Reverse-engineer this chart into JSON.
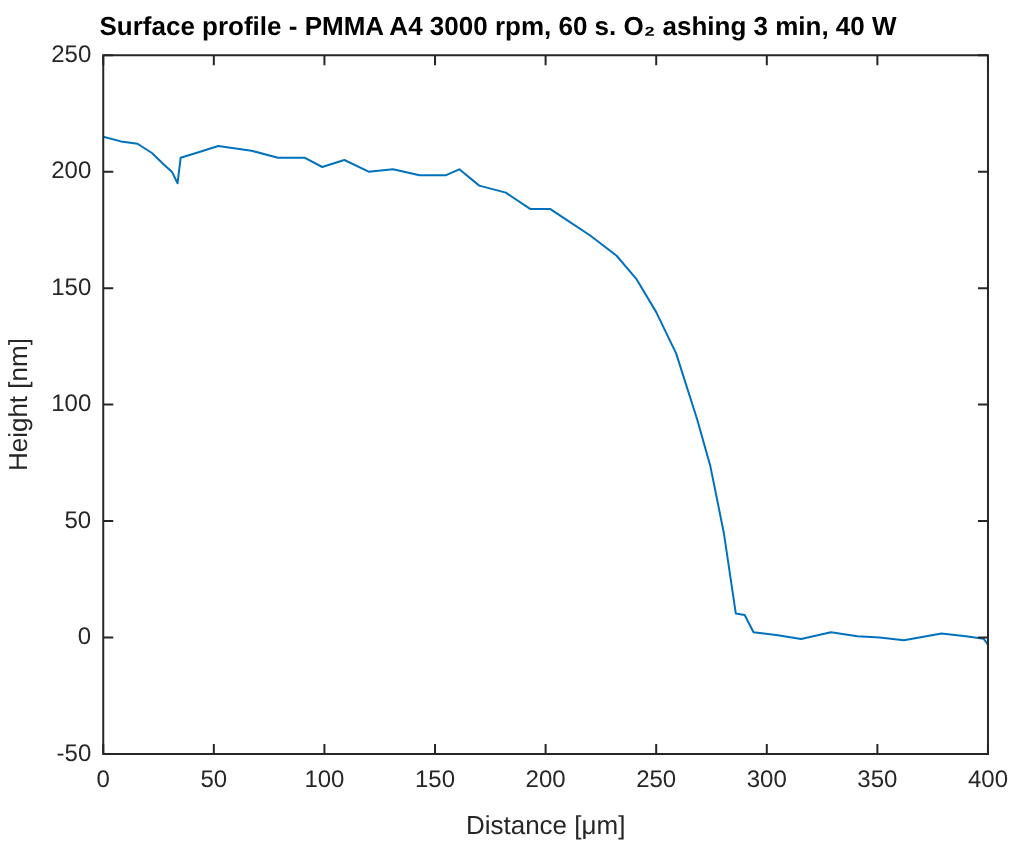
{
  "chart_data": {
    "type": "line",
    "title": "Surface profile - PMMA A4 3000 rpm, 60 s. O₂ ashing 3 min, 40 W",
    "xlabel": "Distance [μm]",
    "ylabel": "Height [nm]",
    "x": [
      0,
      8,
      15.5,
      22,
      27.5,
      31,
      33.6,
      35,
      42,
      52,
      67,
      79,
      91,
      99,
      109,
      120,
      131,
      143,
      155,
      161,
      170,
      182,
      193,
      202,
      210,
      220,
      232,
      241,
      250,
      259,
      268.5,
      274.5,
      280.6,
      286,
      290,
      294,
      305,
      315.5,
      329,
      341,
      351,
      362,
      379,
      390,
      398,
      400
    ],
    "series": [
      {
        "color": "#0072bd",
        "values": [
          215,
          213,
          212,
          208,
          203,
          200,
          195,
          206,
          208,
          211,
          209,
          206,
          206,
          202,
          205,
          200,
          201,
          198.5,
          198.5,
          201,
          194,
          191,
          184,
          184,
          179,
          172.7,
          164,
          154,
          139.7,
          122,
          93.7,
          73.5,
          44.8,
          10.3,
          9.7,
          2.3,
          1,
          -0.6,
          2.3,
          0.6,
          0,
          -1.2,
          1.7,
          0.6,
          -0.5,
          -3
        ]
      }
    ],
    "xlim": [
      0,
      400
    ],
    "xticks": [
      0,
      50,
      100,
      150,
      200,
      250,
      300,
      350,
      400
    ],
    "ylim": [
      -50,
      250
    ],
    "yticks": [
      -50,
      0,
      50,
      100,
      150,
      200,
      250
    ],
    "grid": false,
    "legend": false,
    "marker": "none",
    "line_style": "solid"
  }
}
